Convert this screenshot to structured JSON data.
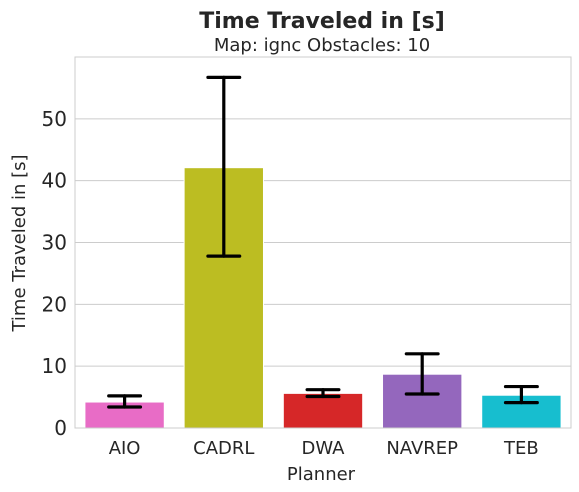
{
  "chart_data": {
    "type": "bar",
    "title": "Time Traveled in [s]",
    "subtitle": "Map: ignc Obstacles: 10",
    "xlabel": "Planner",
    "ylabel": "Time Traveled in [s]",
    "categories": [
      "AIO",
      "CADRL",
      "DWA",
      "NAVREP",
      "TEB"
    ],
    "values": [
      4.2,
      42.1,
      5.6,
      8.7,
      5.3
    ],
    "error_low": [
      3.4,
      27.8,
      5.1,
      5.5,
      4.1
    ],
    "error_high": [
      5.2,
      56.7,
      6.2,
      12.0,
      6.7
    ],
    "colors": [
      "#e86cc6",
      "#bcbd22",
      "#d62728",
      "#9467bd",
      "#17becf"
    ],
    "ylim": [
      0,
      60
    ],
    "yticks": [
      0,
      10,
      20,
      30,
      40,
      50
    ],
    "grid": true,
    "legend": "none"
  }
}
